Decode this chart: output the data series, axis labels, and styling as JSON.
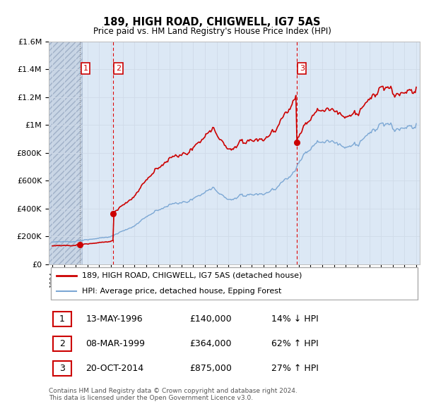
{
  "title": "189, HIGH ROAD, CHIGWELL, IG7 5AS",
  "subtitle": "Price paid vs. HM Land Registry's House Price Index (HPI)",
  "property_label": "189, HIGH ROAD, CHIGWELL, IG7 5AS (detached house)",
  "hpi_label": "HPI: Average price, detached house, Epping Forest",
  "price_color": "#cc0000",
  "hpi_color": "#7ba7d4",
  "sale_dates_float": [
    1996.37,
    1999.17,
    2014.8
  ],
  "sale_prices": [
    140000,
    364000,
    875000
  ],
  "sale_labels": [
    "1",
    "2",
    "3"
  ],
  "sale_info": [
    {
      "label": "1",
      "date": "13-MAY-1996",
      "price": "£140,000",
      "hpi_diff": "14% ↓ HPI"
    },
    {
      "label": "2",
      "date": "08-MAR-1999",
      "price": "£364,000",
      "hpi_diff": "62% ↑ HPI"
    },
    {
      "label": "3",
      "date": "20-OCT-2014",
      "price": "£875,000",
      "hpi_diff": "27% ↑ HPI"
    }
  ],
  "footnote": "Contains HM Land Registry data © Crown copyright and database right 2024.\nThis data is licensed under the Open Government Licence v3.0.",
  "ylim": [
    0,
    1600000
  ],
  "yticks": [
    0,
    200000,
    400000,
    600000,
    800000,
    1000000,
    1200000,
    1400000,
    1600000
  ],
  "ytick_labels": [
    "£0",
    "£200K",
    "£400K",
    "£600K",
    "£800K",
    "£1M",
    "£1.2M",
    "£1.4M",
    "£1.6M"
  ],
  "xlim": [
    1993.7,
    2025.3
  ],
  "background_hatch_color": "#c8d4e4",
  "hatch_region_end": 1996.5,
  "grid_color": "#d0dae8",
  "sale_vline_color": "#dd0000",
  "sale_vline1_color": "#888888",
  "box_border_color": "#cc0000",
  "plot_bg_color": "#dce8f5"
}
